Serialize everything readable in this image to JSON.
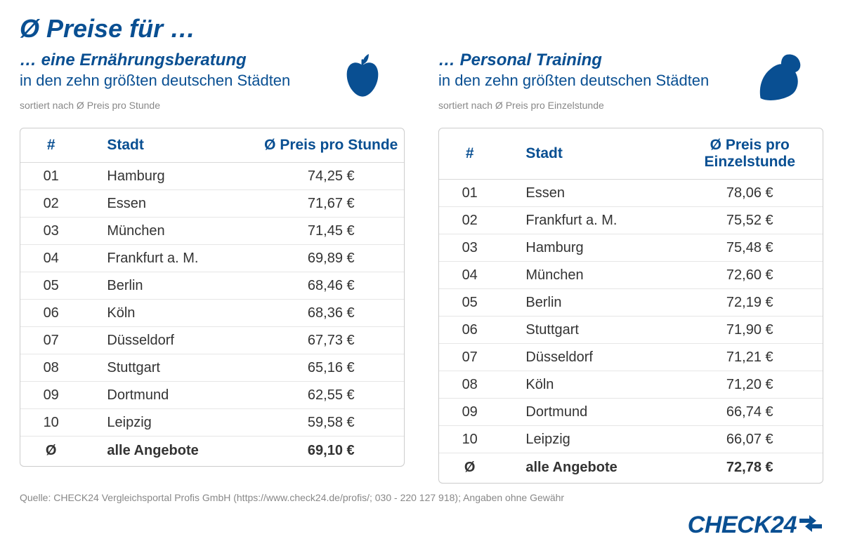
{
  "colors": {
    "brand_blue": "#094f92",
    "text_grey": "#888888",
    "border_grey": "#cccccc",
    "row_border": "#e6e6e6",
    "text_dark": "#333333",
    "background": "#ffffff"
  },
  "main_title": "Ø Preise für …",
  "left": {
    "subtitle": "… eine Ernährungsberatung",
    "subsubtitle": "in den zehn größten deutschen Städten",
    "sort_label": "sortiert nach Ø Preis pro Stunde",
    "icon": "apple",
    "columns": {
      "rank": "#",
      "city": "Stadt",
      "price": "Ø Preis pro Stunde"
    },
    "rows": [
      {
        "rank": "01",
        "city": "Hamburg",
        "price": "74,25 €"
      },
      {
        "rank": "02",
        "city": "Essen",
        "price": "71,67 €"
      },
      {
        "rank": "03",
        "city": "München",
        "price": "71,45 €"
      },
      {
        "rank": "04",
        "city": "Frankfurt a. M.",
        "price": "69,89 €"
      },
      {
        "rank": "05",
        "city": "Berlin",
        "price": "68,46 €"
      },
      {
        "rank": "06",
        "city": "Köln",
        "price": "68,36 €"
      },
      {
        "rank": "07",
        "city": "Düsseldorf",
        "price": "67,73 €"
      },
      {
        "rank": "08",
        "city": "Stuttgart",
        "price": "65,16 €"
      },
      {
        "rank": "09",
        "city": "Dortmund",
        "price": "62,55 €"
      },
      {
        "rank": "10",
        "city": "Leipzig",
        "price": "59,58 €"
      }
    ],
    "total": {
      "rank": "Ø",
      "city": "alle Angebote",
      "price": "69,10 €"
    }
  },
  "right": {
    "subtitle": "… Personal Training",
    "subsubtitle": "in den zehn größten deutschen Städten",
    "sort_label": "sortiert nach Ø Preis pro Einzelstunde",
    "icon": "flex-arm",
    "columns": {
      "rank": "#",
      "city": "Stadt",
      "price": "Ø Preis pro Einzelstunde"
    },
    "rows": [
      {
        "rank": "01",
        "city": "Essen",
        "price": "78,06 €"
      },
      {
        "rank": "02",
        "city": "Frankfurt a. M.",
        "price": "75,52 €"
      },
      {
        "rank": "03",
        "city": "Hamburg",
        "price": "75,48 €"
      },
      {
        "rank": "04",
        "city": "München",
        "price": "72,60 €"
      },
      {
        "rank": "05",
        "city": "Berlin",
        "price": "72,19 €"
      },
      {
        "rank": "06",
        "city": "Stuttgart",
        "price": "71,90 €"
      },
      {
        "rank": "07",
        "city": "Düsseldorf",
        "price": "71,21 €"
      },
      {
        "rank": "08",
        "city": "Köln",
        "price": "71,20 €"
      },
      {
        "rank": "09",
        "city": "Dortmund",
        "price": "66,74 €"
      },
      {
        "rank": "10",
        "city": "Leipzig",
        "price": "66,07 €"
      }
    ],
    "total": {
      "rank": "Ø",
      "city": "alle Angebote",
      "price": "72,78 €"
    }
  },
  "footer_note": "Quelle: CHECK24 Vergleichsportal Profis GmbH (https://www.check24.de/profis/;  030 - 220 127 918); Angaben ohne Gewähr",
  "logo": {
    "text": "CHECK24"
  }
}
